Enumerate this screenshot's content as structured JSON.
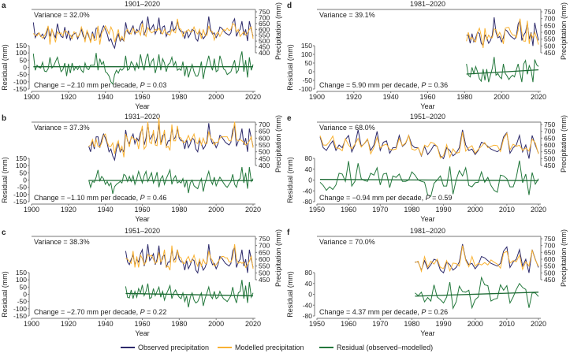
{
  "colors": {
    "observed": "#2d2a6b",
    "modelled": "#f9b233",
    "residual": "#23783c",
    "trend": "#1c6a33",
    "axis": "#777777"
  },
  "legend": {
    "observed": "Observed precipitation",
    "modelled": "Modelled precipitation",
    "residual": "Residual (observed–modelled)"
  },
  "chart_data": {
    "type": "line",
    "xlabel": "Year",
    "ylabel_left": "Residual (mm)",
    "ylabel_right": "Precipitation (mm)",
    "observed": {
      "start_year": 1901,
      "values": [
        660,
        530,
        560,
        570,
        540,
        560,
        520,
        550,
        620,
        540,
        600,
        560,
        530,
        650,
        580,
        540,
        530,
        620,
        520,
        590,
        510,
        550,
        560,
        570,
        520,
        560,
        600,
        540,
        520,
        580,
        540,
        500,
        580,
        520,
        610,
        610,
        530,
        590,
        630,
        600,
        560,
        500,
        520,
        470,
        440,
        520,
        560,
        500,
        520,
        500,
        660,
        580,
        560,
        600,
        630,
        560,
        600,
        580,
        640,
        670,
        550,
        600,
        710,
        590,
        610,
        640,
        560,
        600,
        700,
        560,
        620,
        630,
        540,
        580,
        580,
        670,
        590,
        610,
        670,
        600,
        580,
        580,
        520,
        590,
        530,
        560,
        600,
        590,
        520,
        500,
        580,
        560,
        520,
        540,
        580,
        710,
        600,
        560,
        570,
        530,
        560,
        620,
        610,
        590,
        570,
        560,
        550,
        570,
        660,
        690,
        540,
        580,
        600,
        670,
        550,
        600,
        500,
        670,
        600,
        540
      ]
    },
    "panels": [
      {
        "id": "a",
        "title": "1901–2020",
        "variance": "Variance = 32.0%",
        "change": "Change = −2.10 mm per decade, ",
        "p_symbol": "P",
        "p_value": " = 0.03",
        "start_year": 1901,
        "xlim": [
          1900,
          2020
        ],
        "xticks": [
          1900,
          1920,
          1940,
          1960,
          1980,
          2000,
          2020
        ],
        "precip_lim": [
          400,
          750
        ],
        "precip_ticks": [
          400,
          450,
          500,
          550,
          600,
          650,
          700,
          750
        ],
        "resid_lim": [
          -150,
          150
        ],
        "resid_ticks": [
          -150,
          -100,
          -50,
          0,
          50,
          100,
          150
        ],
        "residual": [
          95,
          -20,
          15,
          0,
          -5,
          35,
          -25,
          -30,
          -10,
          70,
          -5,
          10,
          40,
          70,
          20,
          -30,
          -15,
          30,
          -60,
          25,
          -40,
          30,
          -20,
          5,
          -15,
          10,
          -20,
          -35,
          30,
          -10,
          -15,
          15,
          15,
          15,
          100,
          -20,
          60,
          20,
          40,
          -30,
          -40,
          -60,
          -100,
          -115,
          -50,
          -20,
          -40,
          -10,
          -20,
          -5,
          80,
          -20,
          -10,
          40,
          20,
          -20,
          30,
          -10,
          90,
          20,
          -20,
          60,
          95,
          0,
          40,
          60,
          -40,
          10,
          90,
          -20,
          60,
          30,
          -30,
          20,
          30,
          70,
          10,
          40,
          -20,
          -10,
          -20,
          40,
          -60,
          10,
          -70,
          -20,
          20,
          -30,
          -60,
          -60,
          -20,
          40,
          -80,
          -10,
          30,
          80,
          20,
          -20,
          60,
          -30,
          -20,
          80,
          40,
          -10,
          -20,
          -50,
          -40,
          -30,
          10,
          50,
          -40,
          -20,
          60,
          110,
          -30,
          50,
          -70,
          70,
          -20,
          20
        ]
      },
      {
        "id": "b",
        "title": "1931–2020",
        "variance": "Variance = 37.3%",
        "change": "Change = −1.10 mm per decade, ",
        "p_symbol": "P",
        "p_value": " = 0.46",
        "start_year": 1931,
        "xlim": [
          1900,
          2020
        ],
        "xticks": [
          1900,
          1920,
          1940,
          1960,
          1980,
          2000,
          2020
        ],
        "precip_lim": [
          400,
          700
        ],
        "precip_ticks": [
          400,
          450,
          500,
          550,
          600,
          650,
          700
        ],
        "resid_lim": [
          -150,
          150
        ],
        "resid_ticks": [
          -150,
          -100,
          -50,
          0,
          50,
          100,
          150
        ],
        "residual": [
          0,
          -50,
          -10,
          -15,
          20,
          70,
          -5,
          25,
          10,
          -30,
          -10,
          -40,
          -20,
          -95,
          -45,
          -30,
          -20,
          -10,
          -20,
          40,
          30,
          -10,
          25,
          -10,
          30,
          -30,
          10,
          60,
          20,
          -20,
          30,
          60,
          -10,
          20,
          50,
          -20,
          10,
          55,
          -50,
          10,
          30,
          -30,
          10,
          40,
          70,
          -30,
          10,
          30,
          -20,
          -10,
          -20,
          10,
          -50,
          0,
          -90,
          -20,
          0,
          -40,
          -50,
          -60,
          -20,
          10,
          -80,
          -20,
          20,
          60,
          0,
          -30,
          20,
          -40,
          -10,
          20,
          0,
          -20,
          -40,
          -50,
          -30,
          -10,
          40,
          -30,
          -50,
          0,
          10,
          90,
          -20,
          50,
          -60,
          90,
          -10,
          10
        ]
      },
      {
        "id": "c",
        "title": "1951–2020",
        "variance": "Variance = 38.3%",
        "change": "Change = −2.70 mm per decade, ",
        "p_symbol": "P",
        "p_value": " = 0.22",
        "start_year": 1951,
        "xlim": [
          1900,
          2020
        ],
        "xticks": [
          1900,
          1920,
          1940,
          1960,
          1980,
          2000,
          2020
        ],
        "precip_lim": [
          450,
          750
        ],
        "precip_ticks": [
          450,
          500,
          550,
          600,
          650,
          700,
          750
        ],
        "resid_lim": [
          -150,
          150
        ],
        "resid_ticks": [
          -150,
          -100,
          -50,
          0,
          50,
          100,
          150
        ],
        "residual": [
          55,
          -20,
          -25,
          30,
          -30,
          20,
          -20,
          40,
          10,
          65,
          -10,
          20,
          75,
          -30,
          -20,
          40,
          -10,
          20,
          50,
          -20,
          20,
          -40,
          0,
          30,
          60,
          -30,
          10,
          30,
          0,
          -20,
          -30,
          10,
          -50,
          -10,
          -90,
          -20,
          10,
          -40,
          -60,
          -50,
          -20,
          10,
          -80,
          -30,
          10,
          50,
          -10,
          -30,
          20,
          -30,
          -20,
          20,
          -10,
          -30,
          -40,
          -50,
          -30,
          -10,
          50,
          -20,
          -60,
          10,
          20,
          100,
          -30,
          60,
          -60,
          85,
          -20,
          10
        ]
      },
      {
        "id": "d",
        "title": "1981–2020",
        "variance": "Variance = 39.1%",
        "change": "Change = 5.90 mm per decade, ",
        "p_symbol": "P",
        "p_value": " = 0.36",
        "start_year": 1981,
        "xlim": [
          1900,
          2020
        ],
        "xticks": [
          1900,
          1920,
          1940,
          1960,
          1980,
          2000,
          2020
        ],
        "precip_lim": [
          450,
          750
        ],
        "precip_ticks": [
          450,
          500,
          550,
          600,
          650,
          700,
          750
        ],
        "resid_lim": [
          -100,
          150
        ],
        "resid_ticks": [
          -100,
          -50,
          0,
          50,
          100,
          150
        ],
        "residual": [
          45,
          -20,
          -30,
          25,
          -10,
          30,
          0,
          -40,
          -55,
          15,
          -50,
          15,
          -60,
          -20,
          20,
          85,
          -20,
          -10,
          -30,
          -40,
          45,
          -10,
          -25,
          -45,
          -30,
          -20,
          -30,
          10,
          45,
          -10,
          -60,
          45,
          65,
          -15,
          35,
          10,
          -60,
          70,
          40,
          30
        ]
      },
      {
        "id": "e",
        "title": "1951–2020",
        "variance": "Variance = 68.0%",
        "change": "Change = −0.94 mm per decade, ",
        "p_symbol": "P",
        "p_value": " = 0.59",
        "start_year": 1951,
        "xlim": [
          1950,
          2020
        ],
        "xticks": [
          1950,
          1960,
          1970,
          1980,
          1990,
          2000,
          2010,
          2020
        ],
        "precip_lim": [
          450,
          750
        ],
        "precip_ticks": [
          450,
          500,
          550,
          600,
          650,
          700,
          750
        ],
        "resid_lim": [
          -80,
          80
        ],
        "resid_ticks": [
          -80,
          -40,
          0,
          40,
          80
        ],
        "residual": [
          -8,
          -20,
          -38,
          -25,
          -35,
          -18,
          25,
          22,
          -5,
          70,
          -22,
          -5,
          62,
          5,
          -2,
          -5,
          25,
          18,
          45,
          -18,
          22,
          25,
          -28,
          15,
          10,
          22,
          -5,
          -5,
          0,
          30,
          18,
          0,
          -5,
          -8,
          -55,
          -60,
          -12,
          0,
          15,
          -22,
          -22,
          50,
          -52,
          0,
          35,
          15,
          45,
          -20,
          -25,
          -10,
          -8,
          30,
          -8,
          10,
          -20,
          -38,
          -45,
          18,
          15,
          5,
          -25,
          -25,
          10,
          72,
          -10,
          22,
          -55,
          28,
          -15,
          5
        ]
      },
      {
        "id": "f",
        "title": "1981–2020",
        "variance": "Variance = 70.0%",
        "change": "Change = 4.37 mm per decade, ",
        "p_symbol": "P",
        "p_value": " = 0.26",
        "start_year": 1981,
        "xlim": [
          1950,
          2020
        ],
        "xticks": [
          1950,
          1960,
          1970,
          1980,
          1990,
          2000,
          2010,
          2020
        ],
        "precip_lim": [
          450,
          750
        ],
        "precip_ticks": [
          450,
          500,
          550,
          600,
          650,
          700,
          750
        ],
        "resid_lim": [
          -80,
          80
        ],
        "resid_ticks": [
          -80,
          -40,
          0,
          40,
          80
        ],
        "residual": [
          5,
          -5,
          8,
          -28,
          -12,
          -25,
          35,
          -10,
          -20,
          -32,
          -10,
          45,
          -52,
          -28,
          30,
          10,
          8,
          15,
          -50,
          -20,
          -10,
          62,
          35,
          32,
          -25,
          -18,
          -15,
          35,
          15,
          32,
          -32,
          -10,
          18,
          40,
          25,
          18,
          -50,
          5,
          5,
          -8
        ]
      }
    ]
  }
}
